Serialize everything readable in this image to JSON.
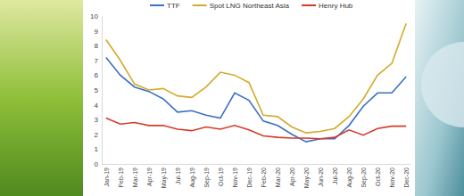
{
  "chart_data": {
    "type": "line",
    "categories": [
      "Jan-19",
      "Feb-19",
      "Mar-19",
      "Apr-19",
      "May-19",
      "Jul-19",
      "Aug-19",
      "Sep-19",
      "Oct-19",
      "Nov-19",
      "Dec-19",
      "Feb-20",
      "Mar-20",
      "Apr-20",
      "May-20",
      "Jun-20",
      "Jul-20",
      "Aug-20",
      "Sep-20",
      "Oct-20",
      "Nov-20",
      "Dec-20"
    ],
    "series": [
      {
        "name": "TTF",
        "color": "#3a6fc4",
        "values": [
          7.2,
          6.0,
          5.2,
          4.9,
          4.4,
          3.5,
          3.6,
          3.3,
          3.1,
          4.8,
          4.3,
          2.9,
          2.6,
          2.0,
          1.5,
          1.7,
          1.7,
          2.6,
          3.9,
          4.8,
          4.8,
          5.9
        ]
      },
      {
        "name": "Spot LNG Northeast Asia",
        "color": "#d4aa2c",
        "values": [
          8.4,
          7.0,
          5.4,
          5.0,
          5.1,
          4.6,
          4.5,
          5.2,
          6.2,
          6.0,
          5.5,
          3.3,
          3.2,
          2.5,
          2.1,
          2.2,
          2.4,
          3.2,
          4.4,
          6.0,
          6.8,
          9.5
        ]
      },
      {
        "name": "Henry Hub",
        "color": "#d63a2a",
        "values": [
          3.1,
          2.7,
          2.8,
          2.6,
          2.6,
          2.35,
          2.25,
          2.5,
          2.35,
          2.6,
          2.3,
          1.9,
          1.8,
          1.75,
          1.75,
          1.7,
          1.8,
          2.3,
          1.95,
          2.4,
          2.55,
          2.55
        ]
      }
    ],
    "ylim": [
      0,
      10
    ],
    "yticks": [
      0,
      1,
      2,
      3,
      4,
      5,
      6,
      7,
      8,
      9,
      10
    ],
    "grid": false,
    "legend": "top"
  }
}
